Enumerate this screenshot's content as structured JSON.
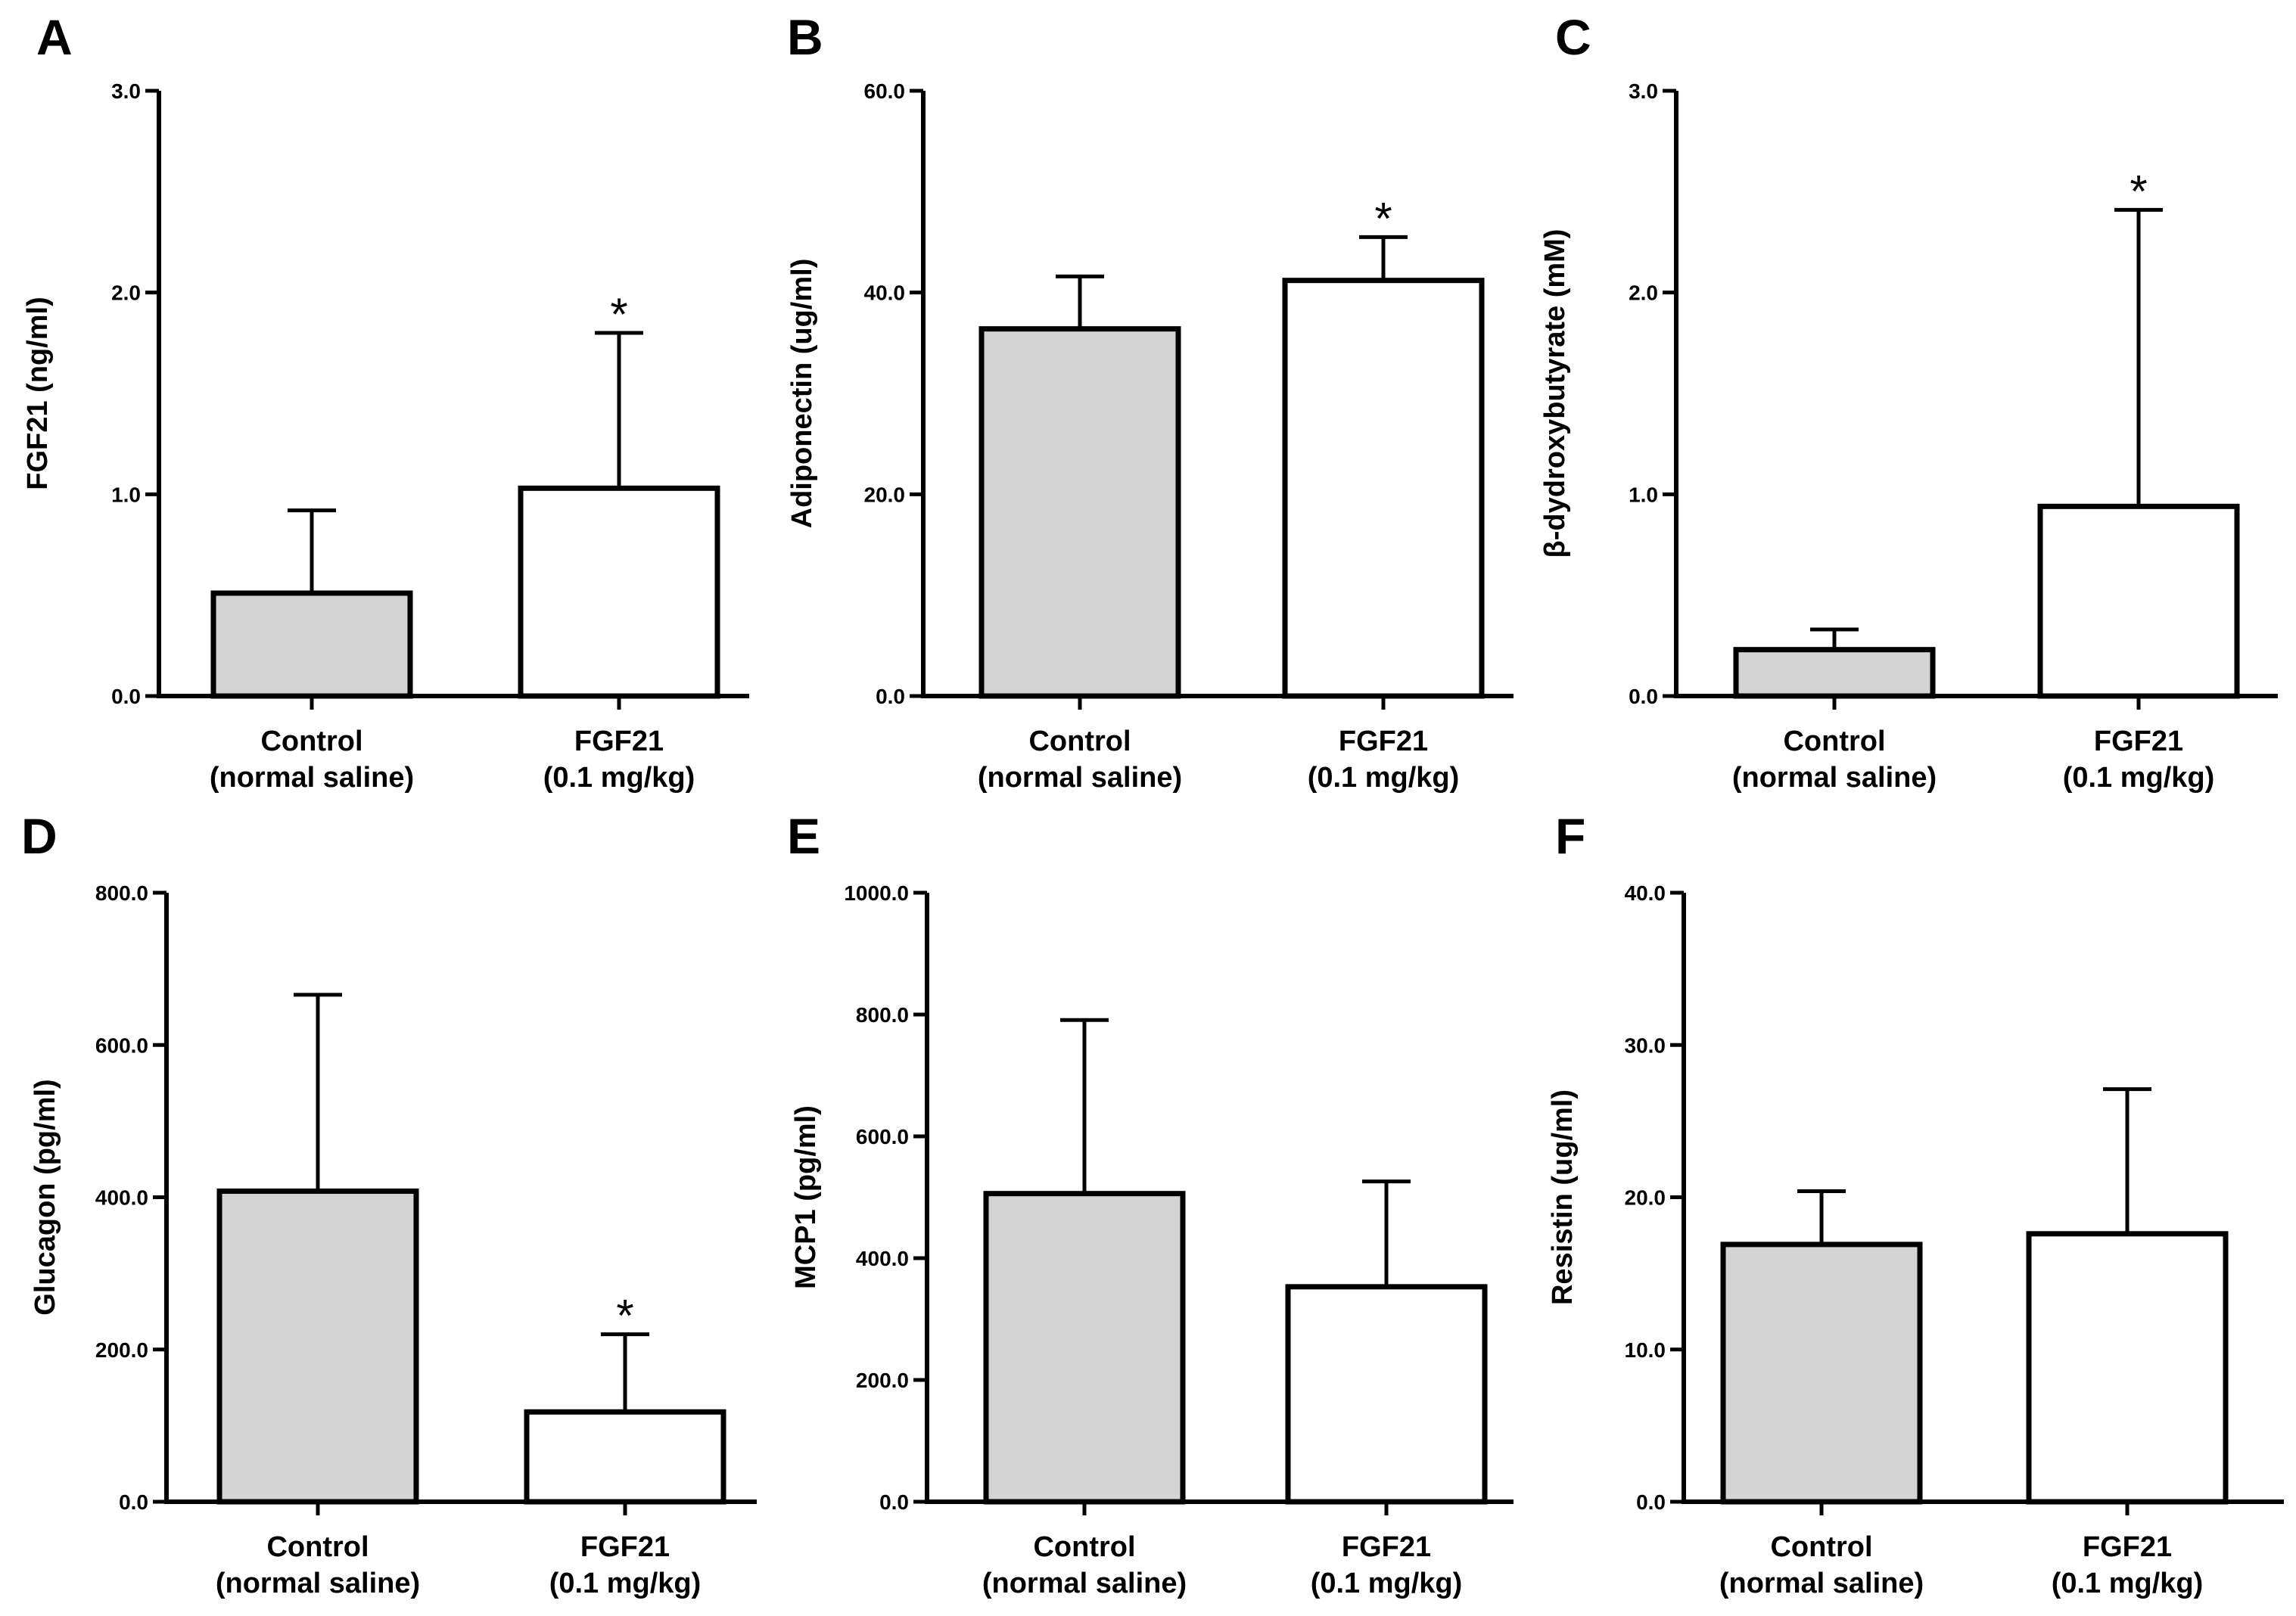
{
  "chart_data": [
    {
      "type": "bar",
      "panel": "A",
      "categories": [
        [
          "Control",
          "(normal saline)"
        ],
        [
          "FGF21",
          "(0.1 mg/kg)"
        ]
      ],
      "values": [
        0.51,
        1.03
      ],
      "error_upper": [
        0.92,
        1.8
      ],
      "significance": [
        "",
        "*"
      ],
      "ylabel": "FGF21 (ng/ml)",
      "ylim": [
        0,
        3
      ],
      "yticks": [
        "0.0",
        "1.0",
        "2.0",
        "3.0"
      ],
      "bar_colors": [
        "#d4d4d4",
        "#ffffff"
      ]
    },
    {
      "type": "bar",
      "panel": "B",
      "categories": [
        [
          "Control",
          "(normal saline)"
        ],
        [
          "FGF21",
          "(0.1 mg/kg)"
        ]
      ],
      "values": [
        36.4,
        41.2
      ],
      "error_upper": [
        41.6,
        45.5
      ],
      "significance": [
        "",
        "*"
      ],
      "ylabel": "Adiponectin (ug/ml)",
      "ylim": [
        0,
        60
      ],
      "yticks": [
        "0.0",
        "20.0",
        "40.0",
        "60.0"
      ],
      "bar_colors": [
        "#d4d4d4",
        "#ffffff"
      ]
    },
    {
      "type": "bar",
      "panel": "C",
      "categories": [
        [
          "Control",
          "(normal saline)"
        ],
        [
          "FGF21",
          "(0.1 mg/kg)"
        ]
      ],
      "values": [
        0.23,
        0.94
      ],
      "error_upper": [
        0.33,
        2.41
      ],
      "significance": [
        "",
        "*"
      ],
      "ylabel": "β-dydroxybutyrate (mM)",
      "ylim": [
        0,
        3
      ],
      "yticks": [
        "0.0",
        "1.0",
        "2.0",
        "3.0"
      ],
      "bar_colors": [
        "#d4d4d4",
        "#ffffff"
      ]
    },
    {
      "type": "bar",
      "panel": "D",
      "categories": [
        [
          "Control",
          "(normal saline)"
        ],
        [
          "FGF21",
          "(0.1 mg/kg)"
        ]
      ],
      "values": [
        408,
        118
      ],
      "error_upper": [
        666,
        220
      ],
      "significance": [
        "",
        "*"
      ],
      "ylabel": "Glucagon (pg/ml)",
      "ylim": [
        0,
        800
      ],
      "yticks": [
        "0.0",
        "200.0",
        "400.0",
        "600.0",
        "800.0"
      ],
      "bar_colors": [
        "#d4d4d4",
        "#ffffff"
      ]
    },
    {
      "type": "bar",
      "panel": "E",
      "categories": [
        [
          "Control",
          "(normal saline)"
        ],
        [
          "FGF21",
          "(0.1 mg/kg)"
        ]
      ],
      "values": [
        506,
        353
      ],
      "error_upper": [
        791,
        526
      ],
      "significance": [
        "",
        ""
      ],
      "ylabel": "MCP1 (pg/ml)",
      "ylim": [
        0,
        1000
      ],
      "yticks": [
        "0.0",
        "200.0",
        "400.0",
        "600.0",
        "800.0",
        "1000.0"
      ],
      "bar_colors": [
        "#d4d4d4",
        "#ffffff"
      ]
    },
    {
      "type": "bar",
      "panel": "F",
      "categories": [
        [
          "Control",
          "(normal saline)"
        ],
        [
          "FGF21",
          "(0.1 mg/kg)"
        ]
      ],
      "values": [
        16.9,
        17.6
      ],
      "error_upper": [
        20.4,
        27.1
      ],
      "significance": [
        "",
        ""
      ],
      "ylabel": "Resistin (ug/ml)",
      "ylim": [
        0,
        40
      ],
      "yticks": [
        "0.0",
        "10.0",
        "20.0",
        "30.0",
        "40.0"
      ],
      "bar_colors": [
        "#d4d4d4",
        "#ffffff"
      ]
    }
  ]
}
